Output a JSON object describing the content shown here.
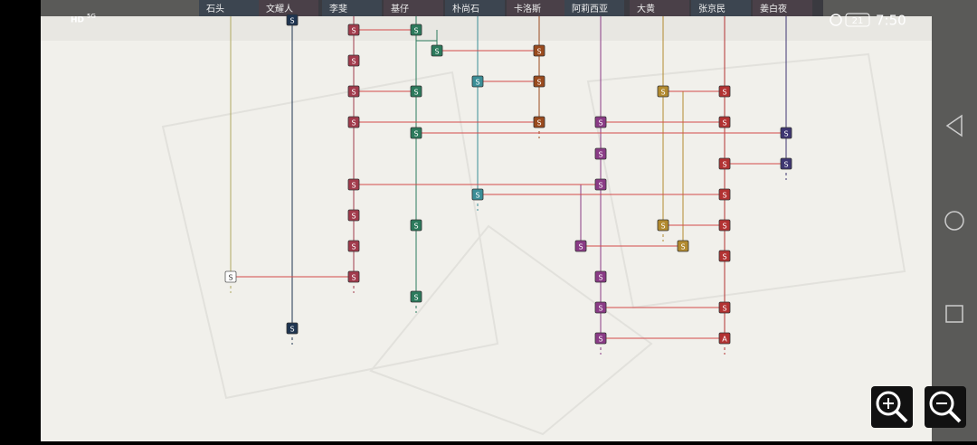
{
  "status_bar": {
    "hd": "HD",
    "network": "5G",
    "battery": "21",
    "time": "7:50"
  },
  "characters": [
    "石头",
    "文耀人",
    "李斐",
    "基仔",
    "朴尚石",
    "卡洛斯",
    "阿莉西亚",
    "大黄",
    "张京民",
    "姜白夜"
  ],
  "nodes": [
    "S",
    "S",
    "S",
    "S",
    "S",
    "S",
    "S",
    "S",
    "S",
    "S",
    "S",
    "S",
    "S",
    "S",
    "S",
    "S",
    "S",
    "S",
    "S",
    "S",
    "S",
    "S",
    "S",
    "S",
    "S",
    "S",
    "S",
    "S",
    "S",
    "S",
    "S",
    "S",
    "S",
    "S",
    "S",
    "S",
    "S",
    "S",
    "S",
    "S",
    "S",
    "A"
  ]
}
